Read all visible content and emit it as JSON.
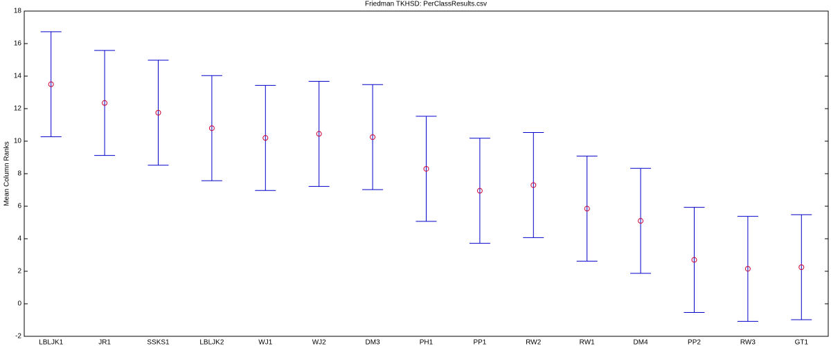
{
  "chart_data": {
    "type": "errorbar",
    "title": "Friedman TKHSD: PerClassResults.csv",
    "y_label": "Mean Column Ranks",
    "categories": [
      "LBLJK1",
      "JR1",
      "SSKS1",
      "LBLJK2",
      "WJ1",
      "WJ2",
      "DM3",
      "PH1",
      "PP1",
      "RW2",
      "RW1",
      "DM4",
      "PP2",
      "RW3",
      "GT1"
    ],
    "values": [
      13.5,
      12.35,
      11.75,
      10.8,
      10.2,
      10.45,
      10.25,
      8.3,
      6.95,
      7.3,
      5.85,
      5.1,
      2.7,
      2.15,
      2.25
    ],
    "errors": [
      3.23,
      3.23,
      3.23,
      3.23,
      3.23,
      3.23,
      3.23,
      3.23,
      3.23,
      3.23,
      3.23,
      3.23,
      3.23,
      3.23,
      3.23
    ],
    "marker_color": "#cc0033",
    "bar_color": "#0000cc",
    "ylim": [
      -2,
      18
    ],
    "yticks": [
      -2,
      0,
      2,
      4,
      6,
      8,
      10,
      12,
      14,
      16,
      18
    ]
  }
}
